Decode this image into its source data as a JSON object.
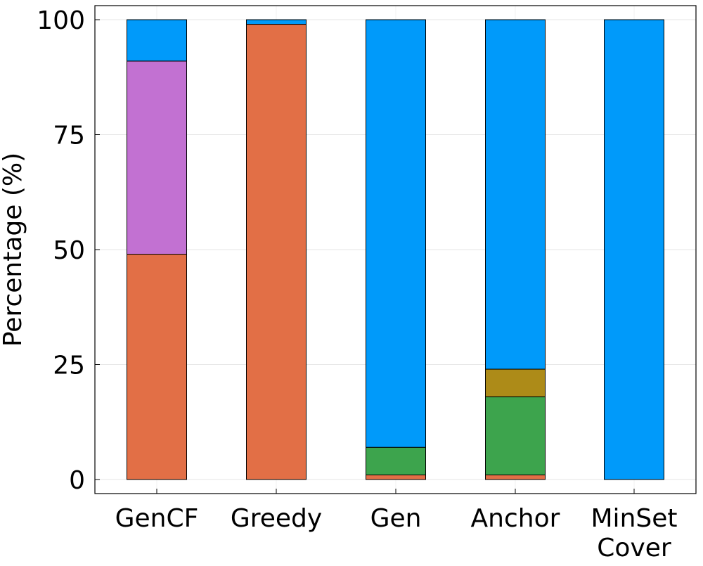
{
  "chart_data": {
    "type": "bar",
    "stacked": true,
    "title": "",
    "xlabel": "",
    "ylabel": "Percentage (%)",
    "ylim": [
      0,
      100
    ],
    "yticks": [
      "0",
      "25",
      "50",
      "75",
      "100"
    ],
    "ytick_values": [
      0,
      25,
      50,
      75,
      100
    ],
    "grid": true,
    "legend": "none",
    "categories": [
      [
        "GenCF"
      ],
      [
        "Greedy"
      ],
      [
        "Gen"
      ],
      [
        "Anchor"
      ],
      [
        "MinSet",
        "Cover"
      ]
    ],
    "series": [
      {
        "color": "#e26f46",
        "values": [
          49,
          99,
          1,
          1,
          0
        ]
      },
      {
        "color": "#3da44d",
        "values": [
          0,
          0,
          6,
          17,
          0
        ]
      },
      {
        "color": "#ad8b18",
        "values": [
          0,
          0,
          0,
          6,
          0
        ]
      },
      {
        "color": "#c271d2",
        "values": [
          42,
          0,
          0,
          0,
          0
        ]
      },
      {
        "color": "#009afa",
        "values": [
          9,
          1,
          93,
          76,
          100
        ]
      }
    ]
  }
}
